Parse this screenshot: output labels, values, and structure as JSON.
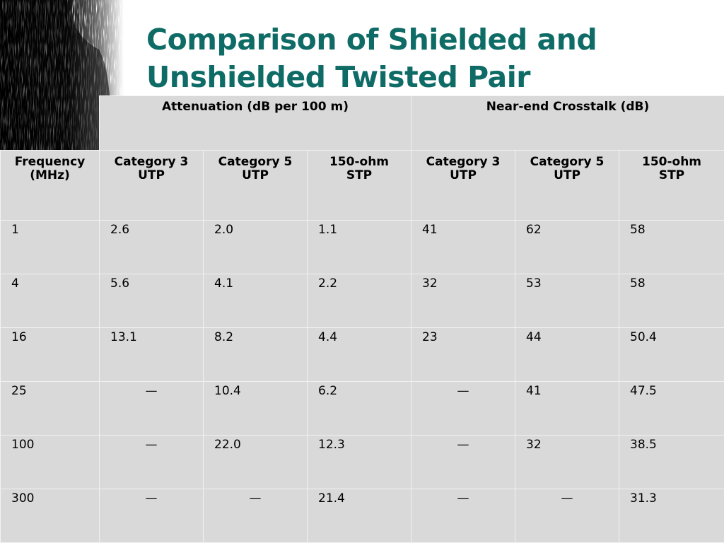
{
  "slide": {
    "title_lines": [
      "Comparison of Shielded and",
      "Unshielded Twisted Pair"
    ]
  },
  "colors": {
    "title": "#0f6b66",
    "cell_background": "#d9d9d9",
    "cell_border": "#f2f2f2"
  },
  "decoration": {
    "icon": "dark-brushstroke-texture"
  },
  "table": {
    "group_headers": [
      "Attenuation (dB per 100 m)",
      "Near-end Crosstalk (dB)"
    ],
    "columns": [
      [
        "Frequency",
        "(MHz)"
      ],
      [
        "Category 3",
        "UTP"
      ],
      [
        "Category 5",
        "UTP"
      ],
      [
        "150-ohm",
        "STP"
      ],
      [
        "Category 3",
        "UTP"
      ],
      [
        "Category 5",
        "UTP"
      ],
      [
        "150-ohm",
        "STP"
      ]
    ],
    "rows": [
      [
        "1",
        "2.6",
        "2.0",
        "1.1",
        "41",
        "62",
        "58"
      ],
      [
        "4",
        "5.6",
        "4.1",
        "2.2",
        "32",
        "53",
        "58"
      ],
      [
        "16",
        "13.1",
        "8.2",
        "4.4",
        "23",
        "44",
        "50.4"
      ],
      [
        "25",
        "—",
        "10.4",
        "6.2",
        "—",
        "41",
        "47.5"
      ],
      [
        "100",
        "—",
        "22.0",
        "12.3",
        "—",
        "32",
        "38.5"
      ],
      [
        "300",
        "—",
        "—",
        "21.4",
        "—",
        "—",
        "31.3"
      ]
    ]
  }
}
